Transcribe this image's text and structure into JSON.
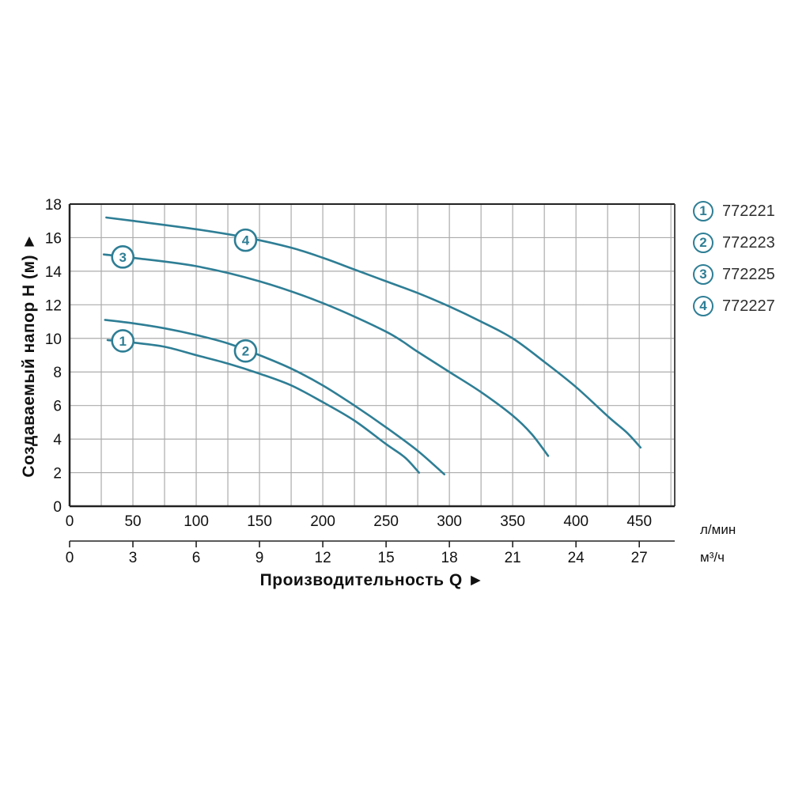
{
  "chart_data": {
    "type": "line",
    "y_axis": {
      "label": "Создаваемый напор H (м) ►",
      "ticks": [
        0,
        2,
        4,
        6,
        8,
        10,
        12,
        14,
        16,
        18
      ],
      "min": 0,
      "max": 18,
      "grid_step": 2
    },
    "x_axis_primary": {
      "unit": "л/мин",
      "ticks": [
        0,
        50,
        100,
        150,
        200,
        250,
        300,
        350,
        400,
        450
      ],
      "min": 0,
      "max": 478,
      "grid_step": 25
    },
    "x_axis_secondary": {
      "unit": "м³/ч",
      "ticks": [
        0,
        3,
        6,
        9,
        12,
        15,
        18,
        21,
        24,
        27
      ],
      "lmin_per_unit": 16.6667
    },
    "x_title": "Производительность Q ►",
    "grid": true,
    "legend_position": "top-right",
    "colors": {
      "curve": "#2e7e95",
      "grid": "#ababab",
      "axis": "#222222",
      "axis_right": "#4a4a4a",
      "text": "#111111",
      "legend_text": "#2f2f2f"
    },
    "series": [
      {
        "num": "1",
        "model": "772221",
        "marker_at": [
          42,
          9.85
        ],
        "points_q_lmin_h_m": [
          [
            30,
            9.9
          ],
          [
            50,
            9.75
          ],
          [
            75,
            9.5
          ],
          [
            100,
            9.0
          ],
          [
            125,
            8.5
          ],
          [
            150,
            7.9
          ],
          [
            175,
            7.2
          ],
          [
            200,
            6.2
          ],
          [
            225,
            5.1
          ],
          [
            250,
            3.7
          ],
          [
            265,
            2.9
          ],
          [
            276,
            2.0
          ]
        ]
      },
      {
        "num": "2",
        "model": "772223",
        "marker_at": [
          139,
          9.25
        ],
        "points_q_lmin_h_m": [
          [
            28,
            11.1
          ],
          [
            50,
            10.9
          ],
          [
            75,
            10.6
          ],
          [
            100,
            10.2
          ],
          [
            125,
            9.7
          ],
          [
            150,
            9.0
          ],
          [
            175,
            8.2
          ],
          [
            200,
            7.2
          ],
          [
            225,
            6.0
          ],
          [
            250,
            4.7
          ],
          [
            275,
            3.3
          ],
          [
            296,
            1.9
          ]
        ]
      },
      {
        "num": "3",
        "model": "772225",
        "marker_at": [
          42,
          14.85
        ],
        "points_q_lmin_h_m": [
          [
            27,
            15.0
          ],
          [
            50,
            14.8
          ],
          [
            100,
            14.3
          ],
          [
            150,
            13.4
          ],
          [
            200,
            12.1
          ],
          [
            250,
            10.4
          ],
          [
            275,
            9.2
          ],
          [
            300,
            8.0
          ],
          [
            325,
            6.8
          ],
          [
            350,
            5.4
          ],
          [
            365,
            4.3
          ],
          [
            378,
            3.0
          ]
        ]
      },
      {
        "num": "4",
        "model": "772227",
        "marker_at": [
          139,
          15.85
        ],
        "points_q_lmin_h_m": [
          [
            29,
            17.2
          ],
          [
            50,
            17.0
          ],
          [
            100,
            16.5
          ],
          [
            140,
            16.0
          ],
          [
            175,
            15.4
          ],
          [
            200,
            14.8
          ],
          [
            225,
            14.1
          ],
          [
            250,
            13.4
          ],
          [
            275,
            12.7
          ],
          [
            300,
            11.9
          ],
          [
            325,
            11.0
          ],
          [
            350,
            10.0
          ],
          [
            375,
            8.6
          ],
          [
            400,
            7.1
          ],
          [
            426,
            5.3
          ],
          [
            440,
            4.4
          ],
          [
            451,
            3.5
          ]
        ]
      }
    ]
  }
}
